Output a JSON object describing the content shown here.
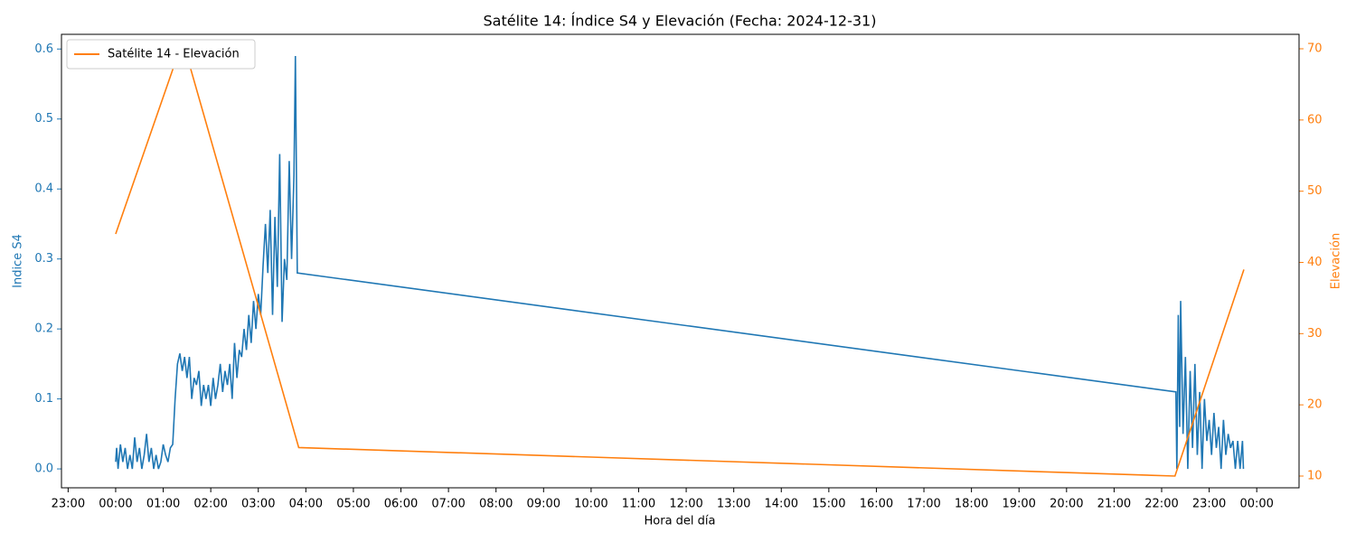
{
  "chart_data": {
    "type": "line",
    "title": "Satélite 14: Índice S4 y Elevación (Fecha: 2024-12-31)",
    "xlabel": "Hora del día",
    "ylabel": "Indice S4",
    "y2label": "Elevación",
    "xlim": [
      -1.14,
      24.89
    ],
    "ylim": [
      -0.027,
      0.621
    ],
    "y2lim": [
      8.35,
      72.03
    ],
    "xticks": [
      {
        "value": -1,
        "label": "23:00"
      },
      {
        "value": 0,
        "label": "00:00"
      },
      {
        "value": 1,
        "label": "01:00"
      },
      {
        "value": 2,
        "label": "02:00"
      },
      {
        "value": 3,
        "label": "03:00"
      },
      {
        "value": 4,
        "label": "04:00"
      },
      {
        "value": 5,
        "label": "05:00"
      },
      {
        "value": 6,
        "label": "06:00"
      },
      {
        "value": 7,
        "label": "07:00"
      },
      {
        "value": 8,
        "label": "08:00"
      },
      {
        "value": 9,
        "label": "09:00"
      },
      {
        "value": 10,
        "label": "10:00"
      },
      {
        "value": 11,
        "label": "11:00"
      },
      {
        "value": 12,
        "label": "12:00"
      },
      {
        "value": 13,
        "label": "13:00"
      },
      {
        "value": 14,
        "label": "14:00"
      },
      {
        "value": 15,
        "label": "15:00"
      },
      {
        "value": 16,
        "label": "16:00"
      },
      {
        "value": 17,
        "label": "17:00"
      },
      {
        "value": 18,
        "label": "18:00"
      },
      {
        "value": 19,
        "label": "19:00"
      },
      {
        "value": 20,
        "label": "20:00"
      },
      {
        "value": 21,
        "label": "21:00"
      },
      {
        "value": 22,
        "label": "22:00"
      },
      {
        "value": 23,
        "label": "23:00"
      },
      {
        "value": 24,
        "label": "00:00"
      }
    ],
    "yticks": [
      {
        "value": 0,
        "label": "0.0"
      },
      0.1,
      0.2,
      0.3,
      0.4,
      0.5,
      0.6
    ],
    "y2ticks": [
      10,
      20,
      30,
      40,
      50,
      60,
      70
    ],
    "ycolor": "#1f77b4",
    "y2color": "#ff7f0e",
    "grid": false,
    "legend": "upper left",
    "series": [
      {
        "color": "#1f77b4",
        "axis": "y",
        "x": [
          0,
          0.02,
          0.05,
          0.1,
          0.15,
          0.2,
          0.25,
          0.3,
          0.35,
          0.4,
          0.45,
          0.5,
          0.55,
          0.6,
          0.65,
          0.7,
          0.75,
          0.8,
          0.85,
          0.9,
          0.95,
          1.0,
          1.05,
          1.1,
          1.15,
          1.2,
          1.25,
          1.3,
          1.35,
          1.4,
          1.45,
          1.5,
          1.55,
          1.6,
          1.65,
          1.7,
          1.75,
          1.8,
          1.85,
          1.9,
          1.95,
          2.0,
          2.05,
          2.1,
          2.15,
          2.2,
          2.25,
          2.3,
          2.35,
          2.4,
          2.45,
          2.5,
          2.55,
          2.6,
          2.65,
          2.7,
          2.75,
          2.8,
          2.85,
          2.9,
          2.95,
          3.0,
          3.05,
          3.1,
          3.15,
          3.2,
          3.25,
          3.3,
          3.35,
          3.4,
          3.45,
          3.5,
          3.55,
          3.6,
          3.65,
          3.7,
          3.75,
          3.78,
          3.82,
          22.3,
          22.32,
          22.35,
          22.38,
          22.4,
          22.45,
          22.5,
          22.55,
          22.6,
          22.65,
          22.7,
          22.75,
          22.8,
          22.85,
          22.9,
          22.95,
          23.0,
          23.05,
          23.1,
          23.15,
          23.2,
          23.25,
          23.3,
          23.35,
          23.4,
          23.45,
          23.5,
          23.55,
          23.6,
          23.65,
          23.7,
          23.72
        ],
        "values": [
          0.01,
          0.03,
          0.0,
          0.035,
          0.01,
          0.03,
          0.0,
          0.02,
          0.0,
          0.045,
          0.01,
          0.03,
          0.0,
          0.02,
          0.05,
          0.01,
          0.03,
          0.0,
          0.02,
          0.0,
          0.01,
          0.035,
          0.02,
          0.01,
          0.03,
          0.035,
          0.1,
          0.15,
          0.165,
          0.14,
          0.16,
          0.13,
          0.16,
          0.1,
          0.13,
          0.12,
          0.14,
          0.09,
          0.12,
          0.1,
          0.12,
          0.09,
          0.13,
          0.1,
          0.12,
          0.15,
          0.11,
          0.14,
          0.12,
          0.15,
          0.1,
          0.18,
          0.13,
          0.17,
          0.16,
          0.2,
          0.17,
          0.22,
          0.18,
          0.24,
          0.2,
          0.25,
          0.22,
          0.29,
          0.35,
          0.28,
          0.37,
          0.22,
          0.36,
          0.26,
          0.45,
          0.21,
          0.3,
          0.27,
          0.44,
          0.3,
          0.42,
          0.59,
          0.28,
          0.11,
          0.0,
          0.22,
          0.06,
          0.24,
          0.05,
          0.16,
          0.0,
          0.14,
          0.03,
          0.15,
          0.02,
          0.11,
          0.0,
          0.1,
          0.04,
          0.07,
          0.02,
          0.08,
          0.03,
          0.06,
          0.0,
          0.07,
          0.02,
          0.05,
          0.03,
          0.04,
          0.0,
          0.04,
          0.0,
          0.04,
          0.0
        ]
      },
      {
        "name": "Satélite 14 - Elevación",
        "color": "#ff7f0e",
        "axis": "y2",
        "x": [
          0,
          1.3,
          1.5,
          3.85,
          22.28,
          23.73
        ],
        "values": [
          44,
          69,
          69,
          14,
          10,
          39
        ]
      }
    ]
  }
}
